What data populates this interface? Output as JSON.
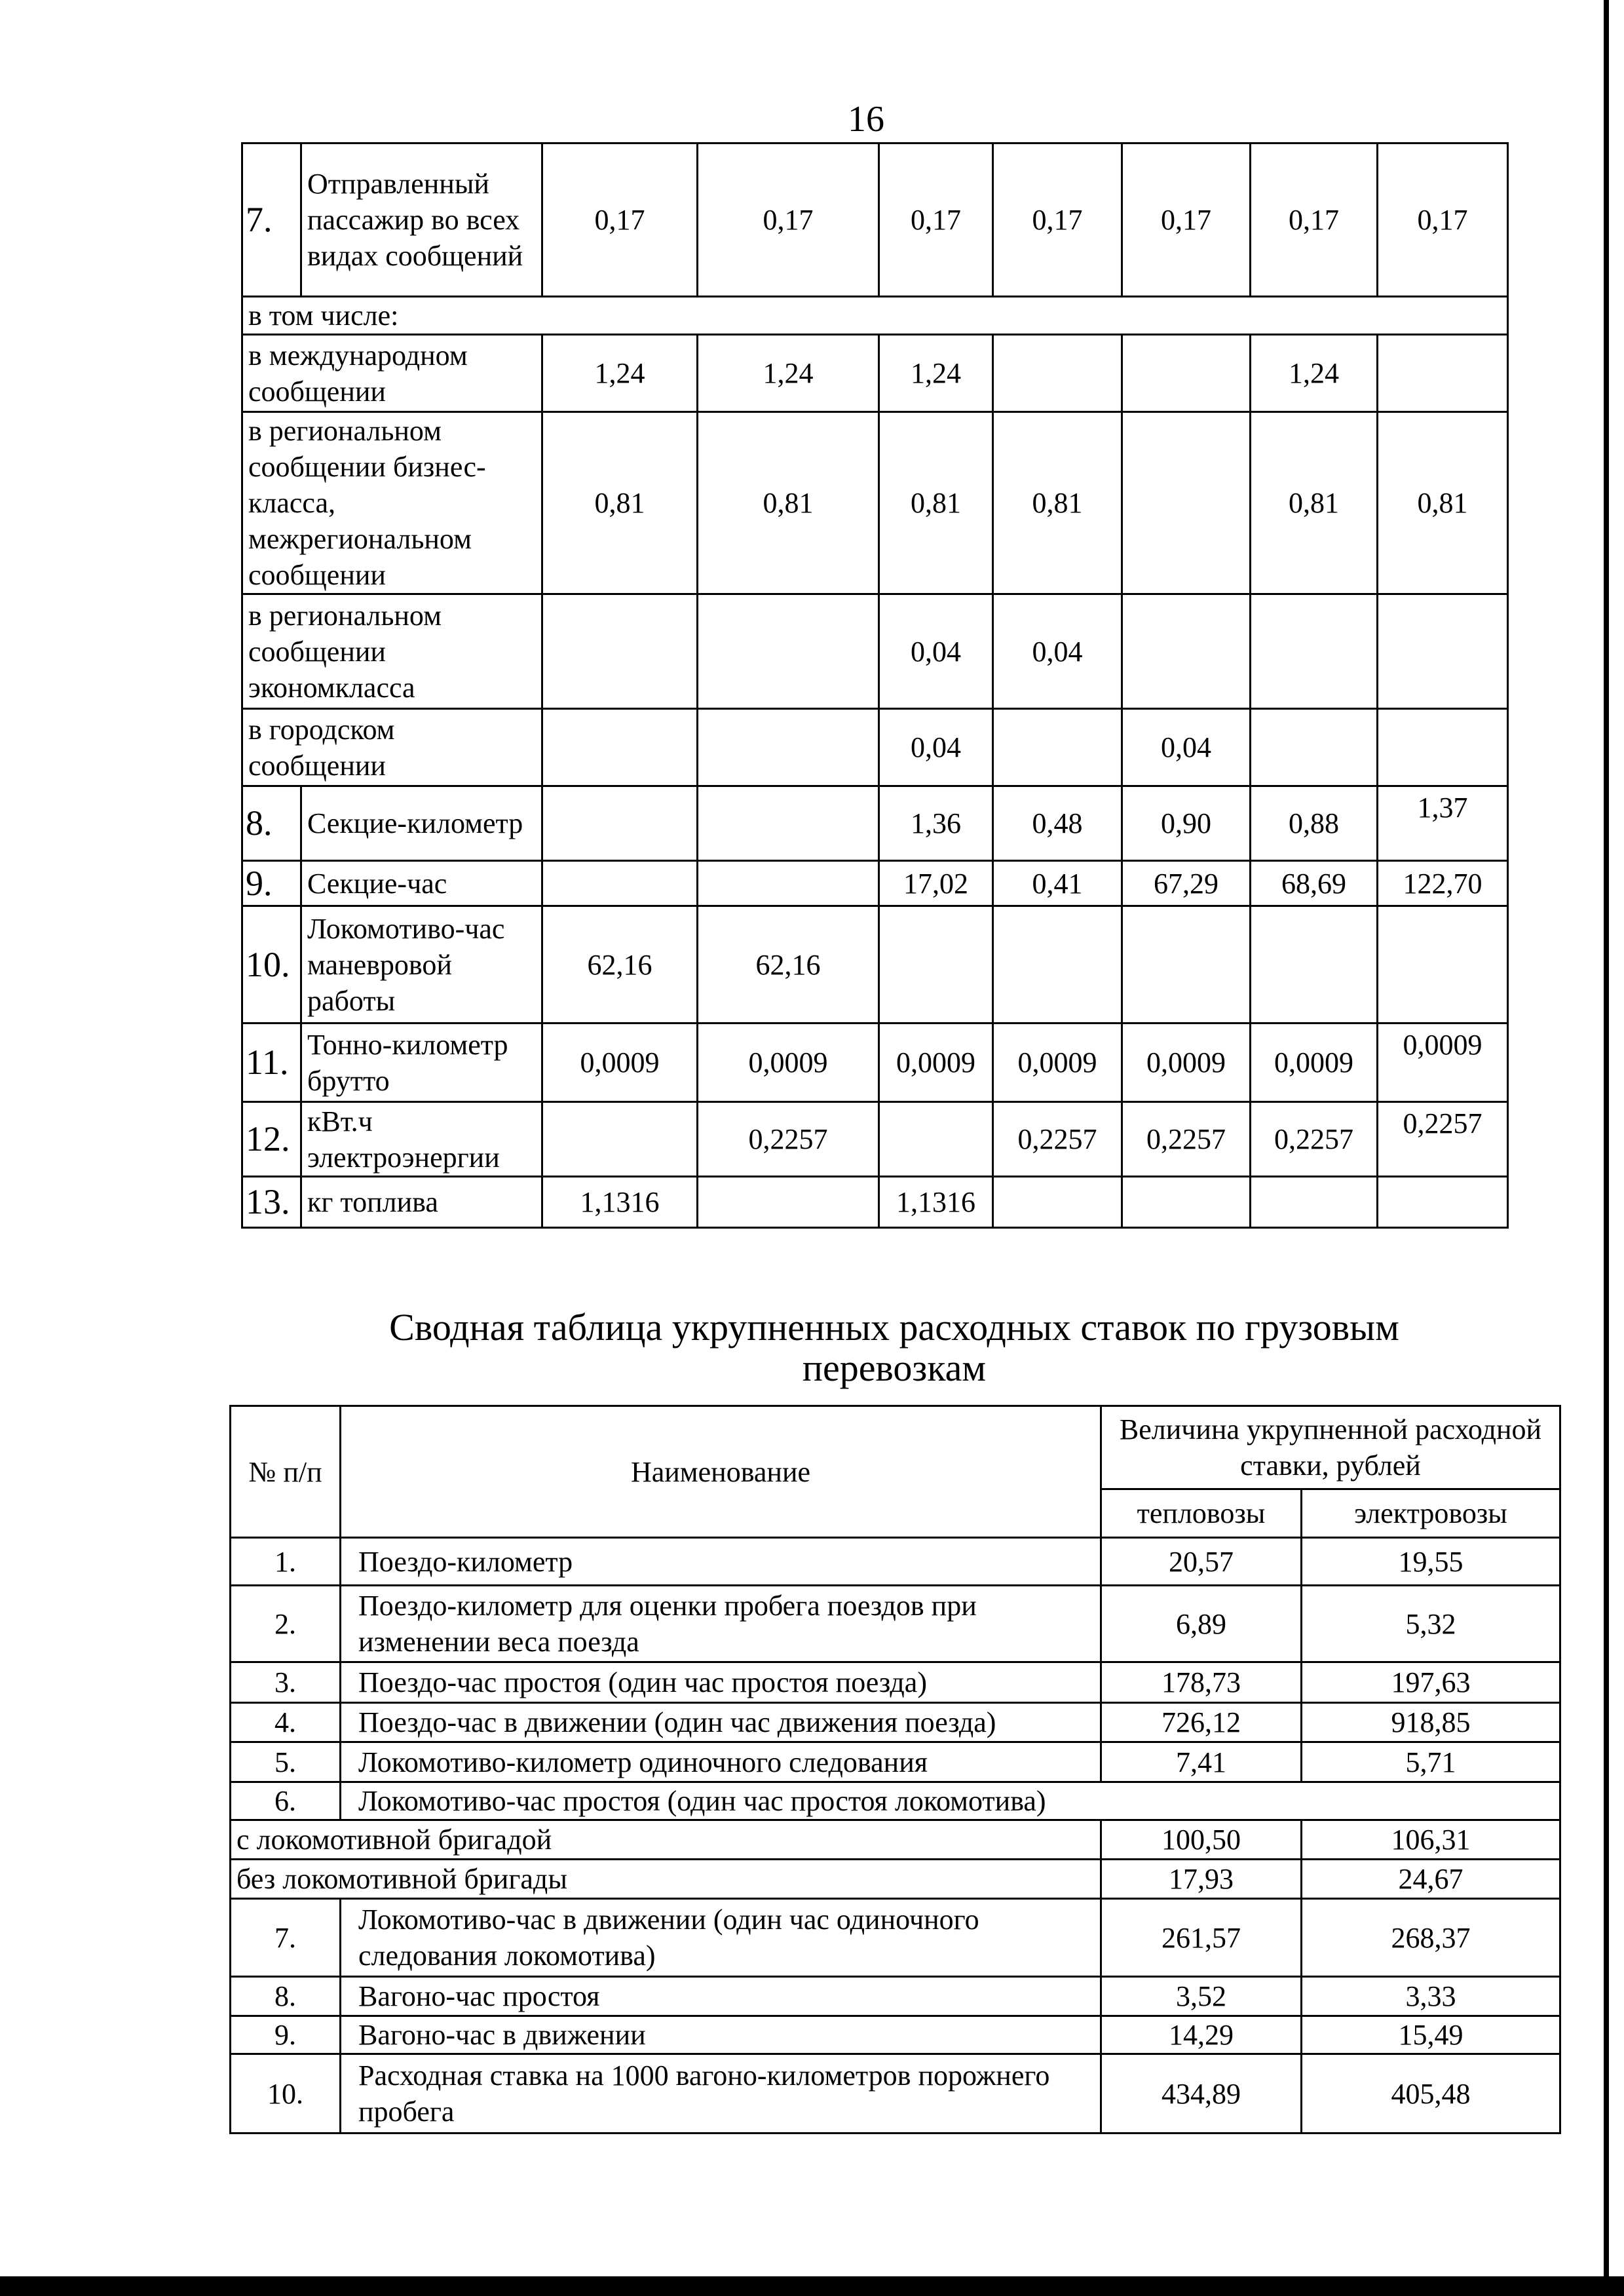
{
  "page_number": "16",
  "top_table": {
    "rows": [
      {
        "num": "7.",
        "label": "Отправленный пассажир во всех видах сообщений",
        "values": [
          "0,17",
          "0,17",
          "0,17",
          "0,17",
          "0,17",
          "0,17",
          "0,17"
        ]
      },
      {
        "span": true,
        "label": "в том числе:"
      },
      {
        "label": "в международном сообщении",
        "values": [
          "1,24",
          "1,24",
          "1,24",
          "",
          "",
          "1,24",
          ""
        ]
      },
      {
        "label": "в региональном сообщении бизнес-класса, межрегиональном сообщении",
        "values": [
          "0,81",
          "0,81",
          "0,81",
          "0,81",
          "",
          "0,81",
          "0,81"
        ]
      },
      {
        "label": "в региональном сообщении экономкласса",
        "values": [
          "",
          "",
          "0,04",
          "0,04",
          "",
          "",
          ""
        ]
      },
      {
        "label": "в городском сообщении",
        "values": [
          "",
          "",
          "0,04",
          "",
          "0,04",
          "",
          ""
        ]
      },
      {
        "num": "8.",
        "label": "Секцие-километр",
        "values": [
          "",
          "",
          "1,36",
          "0,48",
          "0,90",
          "0,88",
          "1,37"
        ],
        "last_top": true
      },
      {
        "num": "9.",
        "label": "Секцие-час",
        "values": [
          "",
          "",
          "17,02",
          "0,41",
          "67,29",
          "68,69",
          "122,70"
        ]
      },
      {
        "num": "10.",
        "label": "Локомотиво-час маневровой работы",
        "values": [
          "62,16",
          "62,16",
          "",
          "",
          "",
          "",
          ""
        ]
      },
      {
        "num": "11.",
        "label": "Тонно-километр брутто",
        "values": [
          "0,0009",
          "0,0009",
          "0,0009",
          "0,0009",
          "0,0009",
          "0,0009",
          "0,0009"
        ],
        "last_top": true
      },
      {
        "num": "12.",
        "label": "кВт.ч электроэнергии",
        "values": [
          "",
          "0,2257",
          "",
          "0,2257",
          "0,2257",
          "0,2257",
          "0,2257"
        ],
        "last_top": true
      },
      {
        "num": "13.",
        "label": "кг топлива",
        "values": [
          "1,1316",
          "",
          "1,1316",
          "",
          "",
          "",
          ""
        ]
      }
    ]
  },
  "bottom_title_line1": "Сводная таблица укрупненных расходных ставок по грузовым",
  "bottom_title_line2": "перевозкам",
  "bottom_table": {
    "header": {
      "num": "№ п/п",
      "name": "Наименование",
      "group": "Величина укрупненной расходной ставки, рублей",
      "col1": "тепловозы",
      "col2": "электровозы"
    },
    "rows": [
      {
        "num": "1.",
        "label": "Поездо-километр",
        "v1": "20,57",
        "v2": "19,55"
      },
      {
        "num": "2.",
        "label": "Поездо-километр для оценки пробега поездов при изменении веса поезда",
        "v1": "6,89",
        "v2": "5,32"
      },
      {
        "num": "3.",
        "label": "Поездо-час простоя (один час простоя поезда)",
        "v1": "178,73",
        "v2": "197,63"
      },
      {
        "num": "4.",
        "label": "Поездо-час в движении (один час движения поезда)",
        "v1": "726,12",
        "v2": "918,85"
      },
      {
        "num": "5.",
        "label": "Локомотиво-километр одиночного следования",
        "v1": "7,41",
        "v2": "5,71"
      },
      {
        "num": "6.",
        "label": "Локомотиво-час простоя (один час простоя локомотива)",
        "span": true
      },
      {
        "full": true,
        "label": "с локомотивной бригадой",
        "v1": "100,50",
        "v2": "106,31"
      },
      {
        "full": true,
        "label": "без локомотивной бригады",
        "v1": "17,93",
        "v2": "24,67"
      },
      {
        "num": "7.",
        "label": "Локомотиво-час в движении (один час одиночного следования локомотива)",
        "v1": "261,57",
        "v2": "268,37"
      },
      {
        "num": "8.",
        "label": "Вагоно-час простоя",
        "v1": "3,52",
        "v2": "3,33"
      },
      {
        "num": "9.",
        "label": "Вагоно-час в движении",
        "v1": "14,29",
        "v2": "15,49"
      },
      {
        "num": "10.",
        "label": "Расходная ставка на 1000  вагоно-километров порожнего пробега",
        "v1": "434,89",
        "v2": "405,48"
      }
    ]
  }
}
